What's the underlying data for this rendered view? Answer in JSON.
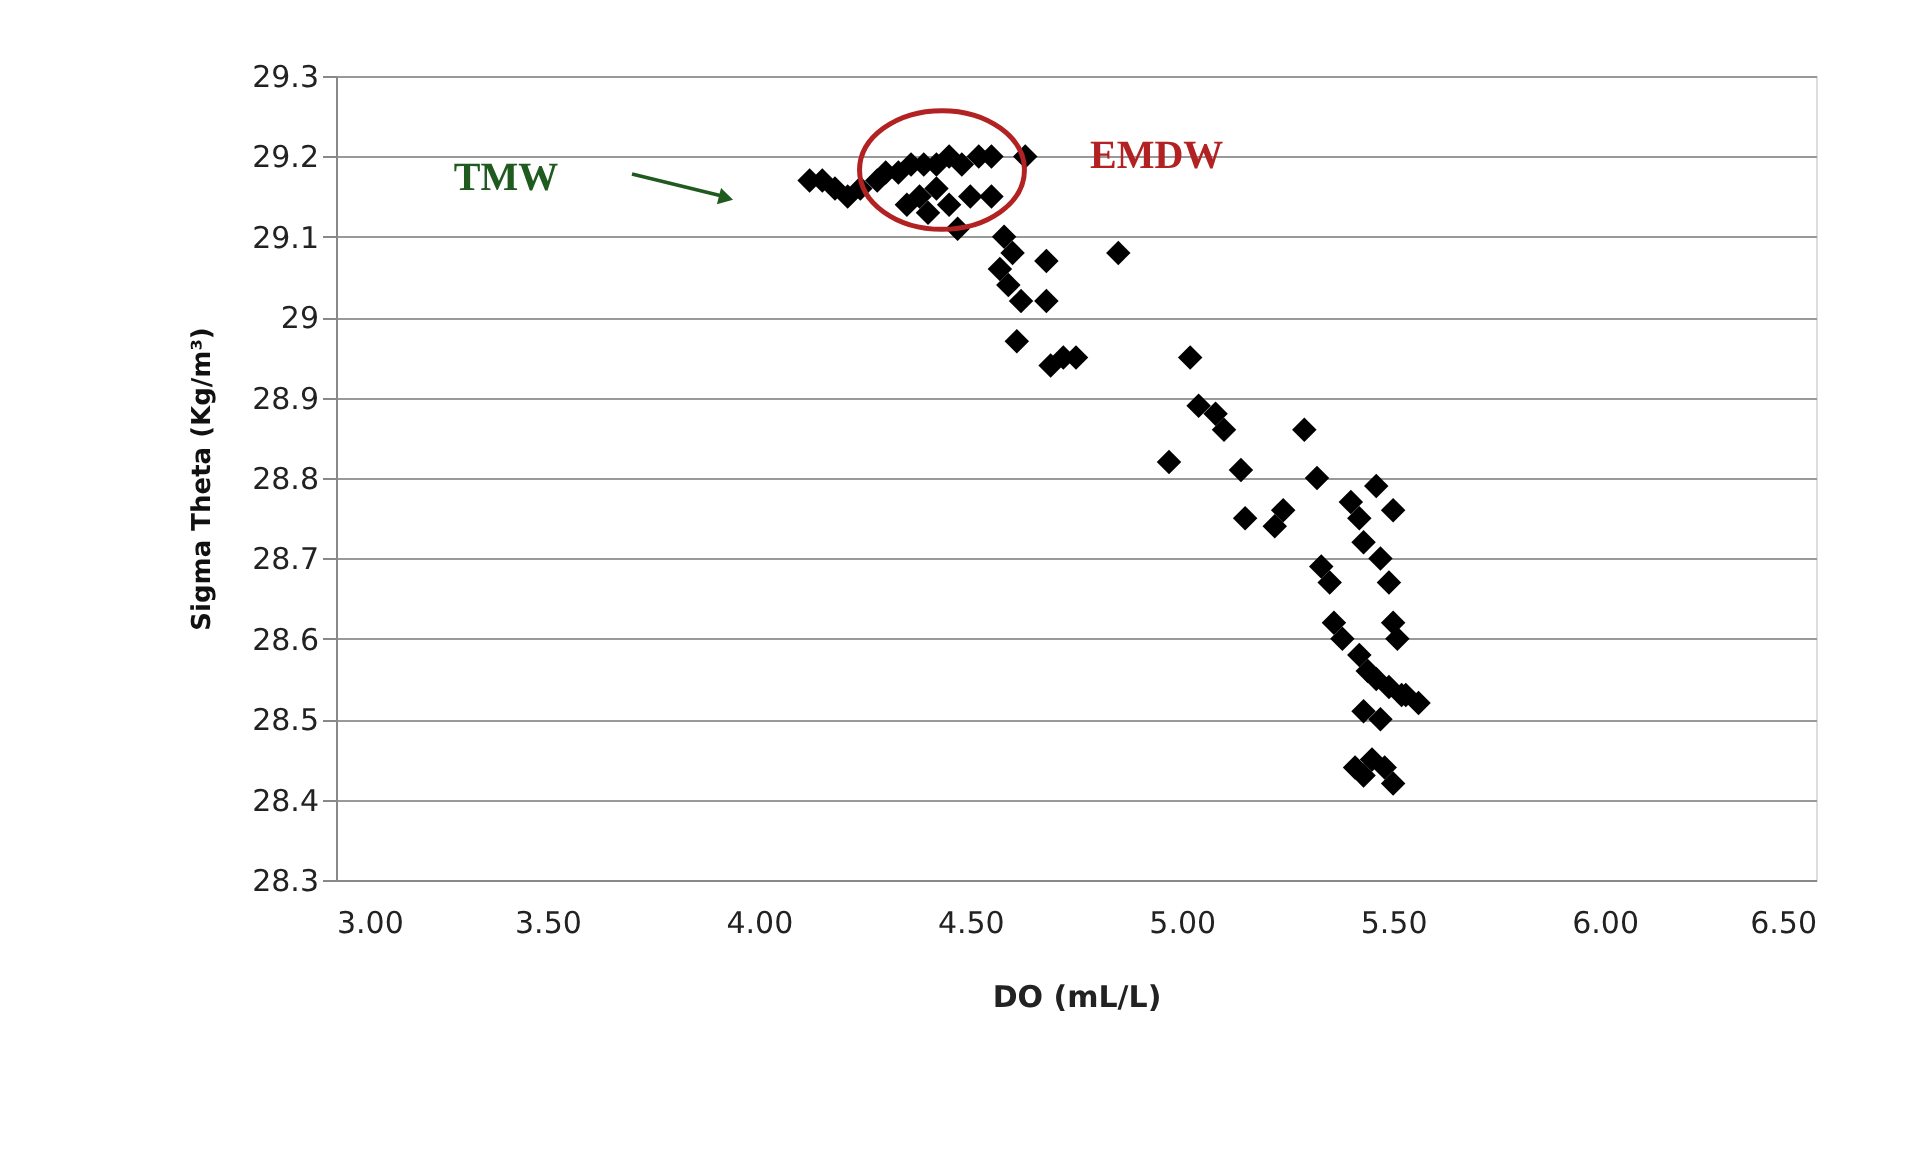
{
  "chart_data": {
    "type": "scatter",
    "xlabel": "DO (mL/L)",
    "ylabel": "Sigma Theta  (Kg/m³)",
    "xlim": [
      3.0,
      6.5
    ],
    "xticks": [
      {
        "value": 3.0,
        "label": "3.00"
      },
      {
        "value": 3.5,
        "label": "3.50"
      },
      {
        "value": 4.0,
        "label": "4.00"
      },
      {
        "value": 4.5,
        "label": "4.50"
      },
      {
        "value": 5.0,
        "label": "5.00"
      },
      {
        "value": 5.5,
        "label": "5.50"
      },
      {
        "value": 6.0,
        "label": "6.00"
      },
      {
        "value": 6.5,
        "label": "6.50"
      }
    ],
    "ylim": [
      28.3,
      29.3
    ],
    "yticks": [
      28.3,
      28.4,
      28.5,
      28.6,
      28.7,
      28.8,
      28.9,
      29,
      29.1,
      29.2,
      29.3
    ],
    "grid": "y",
    "marker": "diamond",
    "series": [
      {
        "color": "#000000",
        "x": [
          4.12,
          4.15,
          4.18,
          4.21,
          4.24,
          4.28,
          4.3,
          4.33,
          4.36,
          4.39,
          4.42,
          4.45,
          4.48,
          4.52,
          4.55,
          4.63,
          4.35,
          4.38,
          4.42,
          4.45,
          4.5,
          4.47,
          4.55,
          4.4,
          4.58,
          4.6,
          4.57,
          4.59,
          4.62,
          4.68,
          4.68,
          4.61,
          4.69,
          4.72,
          4.75,
          4.85,
          5.02,
          5.04,
          5.08,
          5.1,
          5.14,
          4.97,
          5.15,
          5.22,
          5.24,
          5.29,
          5.32,
          5.33,
          5.35,
          5.36,
          5.4,
          5.42,
          5.46,
          5.5,
          5.43,
          5.47,
          5.49,
          5.38,
          5.42,
          5.44,
          5.5,
          5.51,
          5.46,
          5.49,
          5.52,
          5.56,
          5.43,
          5.47,
          5.41,
          5.43,
          5.45,
          5.48,
          5.5,
          5.53
        ],
        "values": [
          29.17,
          29.17,
          29.16,
          29.15,
          29.16,
          29.17,
          29.18,
          29.18,
          29.19,
          29.19,
          29.19,
          29.2,
          29.19,
          29.2,
          29.2,
          29.2,
          29.14,
          29.15,
          29.16,
          29.14,
          29.15,
          29.11,
          29.15,
          29.13,
          29.1,
          29.08,
          29.06,
          29.04,
          29.02,
          29.07,
          29.02,
          28.97,
          28.94,
          28.95,
          28.95,
          29.08,
          28.95,
          28.89,
          28.88,
          28.86,
          28.81,
          28.82,
          28.75,
          28.74,
          28.76,
          28.86,
          28.8,
          28.69,
          28.67,
          28.62,
          28.77,
          28.75,
          28.79,
          28.76,
          28.72,
          28.7,
          28.67,
          28.6,
          28.58,
          28.56,
          28.62,
          28.6,
          28.55,
          28.54,
          28.53,
          28.52,
          28.51,
          28.5,
          28.44,
          28.43,
          28.45,
          28.44,
          28.42,
          28.53
        ]
      }
    ],
    "annotations": [
      "TMW",
      "EMDW"
    ]
  }
}
